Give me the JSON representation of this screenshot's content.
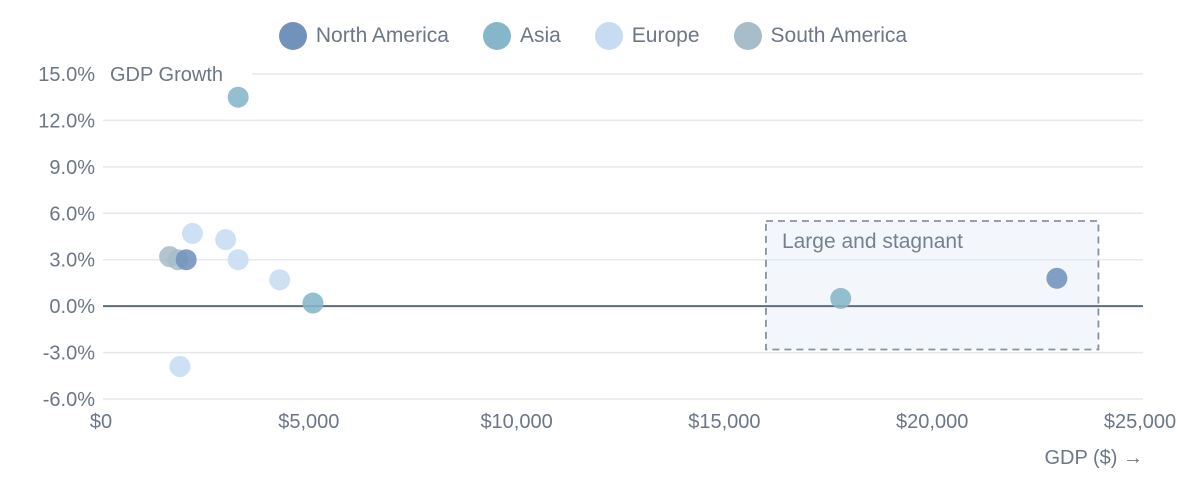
{
  "chart_data": {
    "type": "scatter",
    "title": "",
    "xlabel": "GDP ($) →",
    "ylabel": "GDP Growth",
    "xlim": [
      0,
      25000
    ],
    "ylim": [
      -6,
      15
    ],
    "grid": "horizontal",
    "zero_line": true,
    "legend_position": "top",
    "x_ticks": {
      "values": [
        0,
        5000,
        10000,
        15000,
        20000,
        25000
      ],
      "labels": [
        "$0",
        "$5,000",
        "$10,000",
        "$15,000",
        "$20,000",
        "$25,000"
      ]
    },
    "y_ticks": {
      "values": [
        15,
        12,
        9,
        6,
        3,
        0,
        -3,
        -6
      ],
      "labels": [
        "15.0%",
        "12.0%",
        "9.0%",
        "6.0%",
        "3.0%",
        "0.0%",
        "-3.0%",
        "-6.0%"
      ]
    },
    "series": [
      {
        "name": "North America",
        "color": "#7193bb",
        "points": [
          {
            "x": 2050,
            "y": 3.0
          },
          {
            "x": 23000,
            "y": 1.8
          }
        ]
      },
      {
        "name": "Asia",
        "color": "#85b6ca",
        "points": [
          {
            "x": 3300,
            "y": 13.5
          },
          {
            "x": 5100,
            "y": 0.2
          },
          {
            "x": 17800,
            "y": 0.5
          }
        ]
      },
      {
        "name": "Europe",
        "color": "#c7dcf3",
        "points": [
          {
            "x": 2200,
            "y": 4.7
          },
          {
            "x": 3000,
            "y": 4.3
          },
          {
            "x": 3300,
            "y": 3.0
          },
          {
            "x": 4300,
            "y": 1.7
          },
          {
            "x": 1900,
            "y": -3.9
          }
        ]
      },
      {
        "name": "South America",
        "color": "#a7bdca",
        "points": [
          {
            "x": 1650,
            "y": 3.2
          },
          {
            "x": 1850,
            "y": 3.0
          }
        ]
      }
    ],
    "annotation": {
      "label": "Large and stagnant",
      "x1": 16000,
      "x2": 24000,
      "y1": -2.8,
      "y2": 5.5
    }
  },
  "style": {
    "grid_color": "#e5e8ee",
    "zero_line_color": "#5d6c7e",
    "text_color": "#6b7787",
    "annotation_border_color": "#8493a4",
    "annotation_fill": "rgba(226,235,244,0.4)",
    "point_opacity": "0.88"
  }
}
